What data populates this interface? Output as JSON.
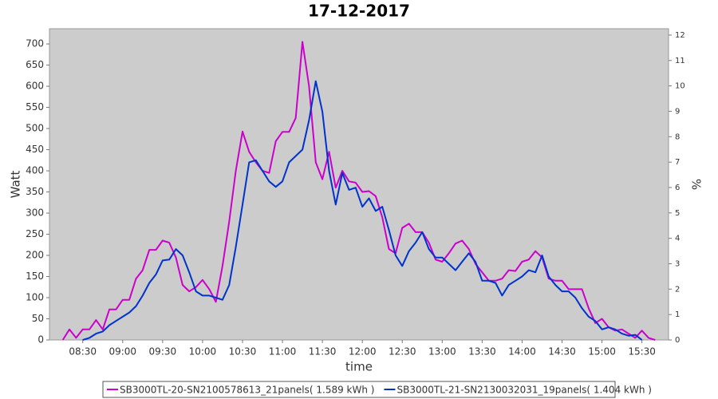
{
  "chart_data": {
    "type": "line",
    "title": "17-12-2017",
    "xlabel": "time",
    "ylabel": "Watt",
    "y2label": "%",
    "x": [
      "08:15",
      "08:20",
      "08:25",
      "08:30",
      "08:35",
      "08:40",
      "08:45",
      "08:50",
      "08:55",
      "09:00",
      "09:05",
      "09:10",
      "09:15",
      "09:20",
      "09:25",
      "09:30",
      "09:35",
      "09:40",
      "09:45",
      "09:50",
      "09:55",
      "10:00",
      "10:05",
      "10:10",
      "10:15",
      "10:20",
      "10:25",
      "10:30",
      "10:35",
      "10:40",
      "10:45",
      "10:50",
      "10:55",
      "11:00",
      "11:05",
      "11:10",
      "11:15",
      "11:20",
      "11:25",
      "11:30",
      "11:35",
      "11:40",
      "11:45",
      "11:50",
      "11:55",
      "12:00",
      "12:05",
      "12:10",
      "12:15",
      "12:20",
      "12:25",
      "12:30",
      "12:35",
      "12:40",
      "12:45",
      "12:50",
      "12:55",
      "13:00",
      "13:05",
      "13:10",
      "13:15",
      "13:20",
      "13:25",
      "13:30",
      "13:35",
      "13:40",
      "13:45",
      "13:50",
      "13:55",
      "14:00",
      "14:05",
      "14:10",
      "14:15",
      "14:20",
      "14:25",
      "14:30",
      "14:35",
      "14:40",
      "14:45",
      "14:50",
      "14:55",
      "15:00",
      "15:05",
      "15:10",
      "15:15",
      "15:20",
      "15:25",
      "15:30",
      "15:35",
      "15:40"
    ],
    "xlim": [
      "08:05",
      "15:50"
    ],
    "xticks": [
      "08:30",
      "09:00",
      "09:30",
      "10:00",
      "10:30",
      "11:00",
      "11:30",
      "12:00",
      "12:30",
      "13:00",
      "13:30",
      "14:00",
      "14:30",
      "15:00",
      "15:30"
    ],
    "ylim": [
      0,
      736
    ],
    "yticks": [
      0,
      50,
      100,
      150,
      200,
      250,
      300,
      350,
      400,
      450,
      500,
      550,
      600,
      650,
      700
    ],
    "y2lim": [
      0,
      12.25
    ],
    "y2ticks": [
      0,
      1,
      2,
      3,
      4,
      5,
      6,
      7,
      8,
      9,
      10,
      11,
      12
    ],
    "legend": "bottom",
    "series": [
      {
        "name": "SB3000TL-20-SN2100578613_21panels( 1.589 kWh )",
        "color": "#cc00cc",
        "values": [
          0,
          25,
          5,
          25,
          25,
          47,
          25,
          72,
          72,
          95,
          95,
          145,
          165,
          213,
          213,
          235,
          230,
          195,
          130,
          115,
          125,
          142,
          120,
          90,
          175,
          280,
          400,
          493,
          445,
          420,
          400,
          395,
          470,
          492,
          492,
          525,
          705,
          600,
          420,
          380,
          445,
          360,
          400,
          375,
          372,
          350,
          352,
          340,
          290,
          215,
          205,
          265,
          275,
          255,
          255,
          230,
          190,
          185,
          205,
          228,
          235,
          215,
          180,
          160,
          140,
          140,
          145,
          165,
          163,
          185,
          190,
          210,
          195,
          145,
          140,
          140,
          120,
          120,
          120,
          75,
          40,
          50,
          30,
          22,
          25,
          15,
          5,
          22,
          5,
          0
        ]
      },
      {
        "name": "SB3000TL-21-SN2130032031_19panels( 1.404 kWh )",
        "color": "#0033cc",
        "values": [
          null,
          null,
          null,
          0,
          5,
          15,
          20,
          35,
          45,
          55,
          65,
          80,
          105,
          135,
          155,
          188,
          190,
          215,
          200,
          160,
          115,
          105,
          105,
          100,
          95,
          130,
          220,
          320,
          420,
          425,
          400,
          375,
          362,
          375,
          420,
          435,
          450,
          520,
          612,
          540,
          400,
          320,
          395,
          355,
          360,
          315,
          335,
          305,
          315,
          260,
          200,
          175,
          210,
          230,
          255,
          215,
          195,
          195,
          180,
          165,
          185,
          205,
          185,
          140,
          140,
          135,
          105,
          130,
          140,
          150,
          165,
          160,
          200,
          150,
          130,
          115,
          115,
          100,
          75,
          55,
          45,
          25,
          30,
          25,
          15,
          10,
          12,
          0,
          null,
          null
        ]
      }
    ]
  }
}
